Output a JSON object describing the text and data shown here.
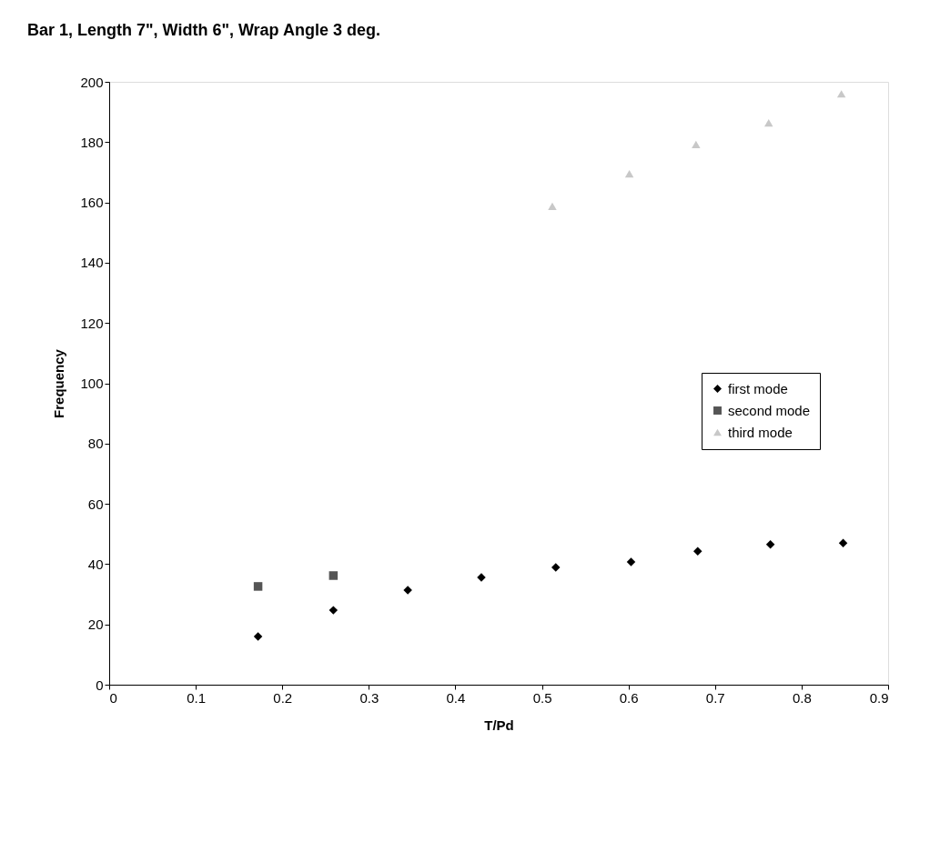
{
  "chart_data": {
    "type": "scatter",
    "title": "Bar 1, Length 7\", Width 6\", Wrap Angle 3 deg.",
    "xlabel": "T/Pd",
    "ylabel": "Frequency",
    "xlim": [
      0,
      0.9
    ],
    "xticks": [
      0,
      0.1,
      0.2,
      0.3,
      0.4,
      0.5,
      0.6,
      0.7,
      0.8,
      0.9
    ],
    "ylim": [
      0,
      200
    ],
    "yticks": [
      0,
      20,
      40,
      60,
      80,
      100,
      120,
      140,
      160,
      180,
      200
    ],
    "grid": false,
    "legend": "right",
    "series": [
      {
        "name": "first mode",
        "color": "#000000",
        "marker": "diamond",
        "x": [
          0.172,
          0.259,
          0.345,
          0.43,
          0.516,
          0.603,
          0.68,
          0.764,
          0.848
        ],
        "values": [
          16,
          24.7,
          31.4,
          35.6,
          38.9,
          40.7,
          44.3,
          46.5,
          47
        ]
      },
      {
        "name": "second mode",
        "color": "#555555",
        "marker": "square",
        "x": [
          0.172,
          0.259
        ],
        "values": [
          32.6,
          36.2
        ]
      },
      {
        "name": "third mode",
        "color": "#c8c8c8",
        "marker": "triangle",
        "x": [
          0.512,
          0.601,
          0.678,
          0.762,
          0.846
        ],
        "values": [
          158.7,
          169.5,
          179.2,
          186.4,
          196
        ]
      }
    ]
  }
}
